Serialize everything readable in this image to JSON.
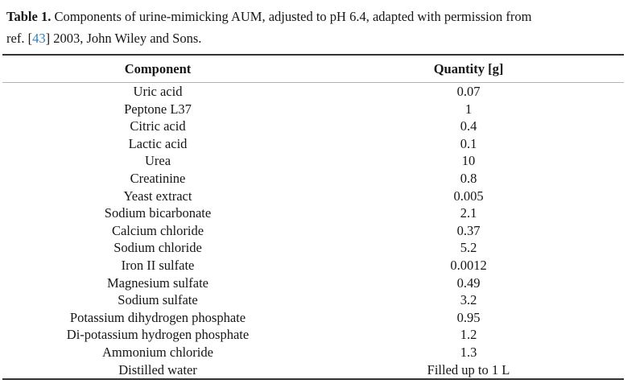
{
  "caption": {
    "label": "Table 1.",
    "line1_text": " Components of urine-mimicking AUM, adjusted to pH 6.4, adapted with permission from",
    "line2_pre": "ref. ",
    "ref_bracket_open": "[",
    "ref_number": "43",
    "ref_bracket_close": "]",
    "line2_post": " 2003, John Wiley and Sons."
  },
  "table": {
    "columns": {
      "component": "Component",
      "quantity": "Quantity [g]"
    },
    "rows": [
      {
        "component": "Uric acid",
        "quantity": "0.07"
      },
      {
        "component": "Peptone L37",
        "quantity": "1"
      },
      {
        "component": "Citric acid",
        "quantity": "0.4"
      },
      {
        "component": "Lactic acid",
        "quantity": "0.1"
      },
      {
        "component": "Urea",
        "quantity": "10"
      },
      {
        "component": "Creatinine",
        "quantity": "0.8"
      },
      {
        "component": "Yeast extract",
        "quantity": "0.005"
      },
      {
        "component": "Sodium bicarbonate",
        "quantity": "2.1"
      },
      {
        "component": "Calcium chloride",
        "quantity": "0.37"
      },
      {
        "component": "Sodium chloride",
        "quantity": "5.2"
      },
      {
        "component": "Iron II sulfate",
        "quantity": "0.0012"
      },
      {
        "component": "Magnesium sulfate",
        "quantity": "0.49"
      },
      {
        "component": "Sodium sulfate",
        "quantity": "3.2"
      },
      {
        "component": "Potassium dihydrogen phosphate",
        "quantity": "0.95"
      },
      {
        "component": "Di-potassium hydrogen phosphate",
        "quantity": "1.2"
      },
      {
        "component": "Ammonium chloride",
        "quantity": "1.3"
      },
      {
        "component": "Distilled water",
        "quantity": "Filled up to 1 L"
      }
    ]
  },
  "colors": {
    "ref_link_blue": "#2e7fbc",
    "rule_dark": "#333333",
    "rule_light": "#b3b3b3"
  }
}
